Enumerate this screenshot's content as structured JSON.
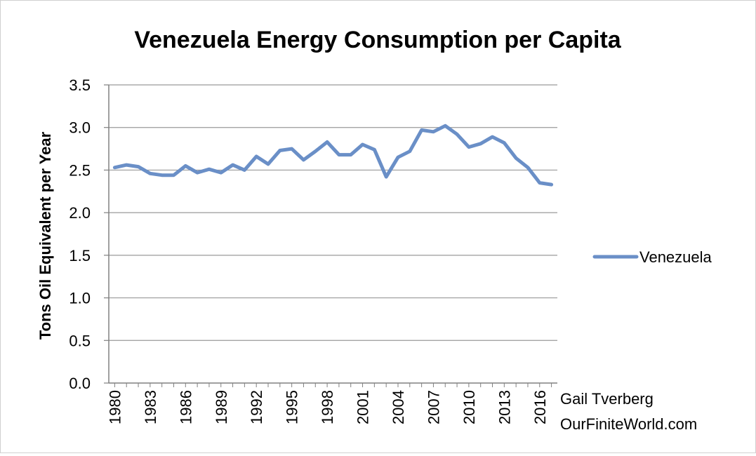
{
  "chart_data": {
    "type": "line",
    "title": "Venezuela Energy Consumption per Capita",
    "ylabel": "Tons Oil Equivalent per Year",
    "xlabel": "",
    "ylim": [
      0,
      3.5
    ],
    "yticks": [
      "0.0",
      "0.5",
      "1.0",
      "1.5",
      "2.0",
      "2.5",
      "3.0",
      "3.5"
    ],
    "xtick_labels": [
      "1980",
      "1983",
      "1986",
      "1989",
      "1992",
      "1995",
      "1998",
      "2001",
      "2004",
      "2007",
      "2010",
      "2013",
      "2016"
    ],
    "grid": "horizontal",
    "legend_position": "right",
    "color": "#6a8fc7",
    "x": [
      1980,
      1981,
      1982,
      1983,
      1984,
      1985,
      1986,
      1987,
      1988,
      1989,
      1990,
      1991,
      1992,
      1993,
      1994,
      1995,
      1996,
      1997,
      1998,
      1999,
      2000,
      2001,
      2002,
      2003,
      2004,
      2005,
      2006,
      2007,
      2008,
      2009,
      2010,
      2011,
      2012,
      2013,
      2014,
      2015,
      2016,
      2017
    ],
    "series": [
      {
        "name": "Venezuela",
        "values": [
          2.53,
          2.56,
          2.54,
          2.46,
          2.44,
          2.44,
          2.55,
          2.47,
          2.51,
          2.47,
          2.56,
          2.5,
          2.66,
          2.57,
          2.73,
          2.75,
          2.62,
          2.72,
          2.83,
          2.68,
          2.68,
          2.8,
          2.74,
          2.42,
          2.65,
          2.72,
          2.97,
          2.95,
          3.02,
          2.92,
          2.77,
          2.81,
          2.89,
          2.82,
          2.64,
          2.53,
          2.35,
          2.33
        ]
      }
    ]
  },
  "credit": {
    "line1": "Gail Tverberg",
    "line2": "OurFiniteWorld.com"
  }
}
